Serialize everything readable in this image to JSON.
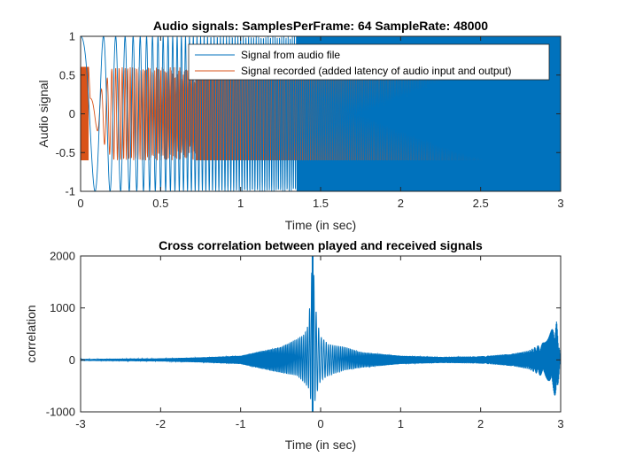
{
  "chart_data": [
    {
      "type": "line",
      "title": "Audio signals: SamplesPerFrame: 64 SampleRate: 48000",
      "xlabel": "Time (in sec)",
      "ylabel": "Audio signal",
      "xlim": [
        0,
        3
      ],
      "ylim": [
        -1,
        1
      ],
      "xticks": [
        0,
        0.5,
        1,
        1.5,
        2,
        2.5,
        3
      ],
      "xtick_labels": [
        "0",
        "0.5",
        "1",
        "1.5",
        "2",
        "2.5",
        "3"
      ],
      "yticks": [
        -1,
        -0.5,
        0,
        0.5,
        1
      ],
      "ytick_labels": [
        "-1",
        "-0.5",
        "0",
        "0.5",
        "1"
      ],
      "grid": false,
      "legend_position": "top-right",
      "series": [
        {
          "name": "Signal from audio file",
          "color": "#0072bd",
          "description": "chirp",
          "amplitude": 1.0,
          "x": [
            0,
            0.05,
            0.1,
            0.2,
            0.3,
            0.5,
            0.7,
            1.0,
            1.2,
            1.3,
            1.5,
            2.0,
            2.5,
            3.0
          ],
          "y_envelope": [
            1,
            1,
            1,
            1,
            1,
            1,
            1,
            1,
            1,
            1,
            1,
            1,
            1,
            1
          ]
        },
        {
          "name": "Signal recorded (added latency of audio input and output)",
          "color": "#d95319",
          "description": "delayed chirp",
          "amplitude": 0.6,
          "x": [
            0,
            0.05,
            0.06,
            0.1,
            0.2,
            0.3,
            0.5,
            0.7,
            1.0,
            1.5,
            2.0,
            2.5,
            3.0
          ],
          "y_envelope": [
            0.6,
            0.6,
            0.2,
            0.2,
            0.6,
            0.6,
            0.6,
            0.6,
            0.6,
            0.6,
            0.6,
            0.6,
            0.6
          ]
        }
      ]
    },
    {
      "type": "line",
      "title": "Cross correlation between played and received signals",
      "xlabel": "Time (in sec)",
      "ylabel": "correlation",
      "xlim": [
        -3,
        3
      ],
      "ylim": [
        -1000,
        2000
      ],
      "xticks": [
        -3,
        -2,
        -1,
        0,
        1,
        2,
        3
      ],
      "xtick_labels": [
        "-3",
        "-2",
        "-1",
        "0",
        "1",
        "2",
        "3"
      ],
      "yticks": [
        -1000,
        0,
        1000,
        2000
      ],
      "ytick_labels": [
        "-1000",
        "0",
        "1000",
        "2000"
      ],
      "grid": false,
      "series": [
        {
          "color": "#0072bd",
          "x": [
            -3,
            -2.5,
            -2,
            -1.5,
            -1,
            -0.8,
            -0.5,
            -0.3,
            -0.2,
            -0.15,
            -0.1,
            -0.05,
            0,
            0.1,
            0.3,
            0.5,
            1,
            1.5,
            2,
            2.4,
            2.6,
            2.8,
            2.95,
            3
          ],
          "y_upper": [
            20,
            25,
            30,
            50,
            80,
            150,
            250,
            400,
            500,
            700,
            2000,
            800,
            450,
            300,
            250,
            150,
            80,
            60,
            70,
            120,
            180,
            350,
            750,
            0
          ],
          "y_lower": [
            -20,
            -25,
            -30,
            -50,
            -80,
            -150,
            -250,
            -300,
            -450,
            -550,
            -1000,
            -650,
            -400,
            -300,
            -200,
            -150,
            -80,
            -60,
            -70,
            -120,
            -180,
            -350,
            -750,
            0
          ]
        }
      ]
    }
  ]
}
